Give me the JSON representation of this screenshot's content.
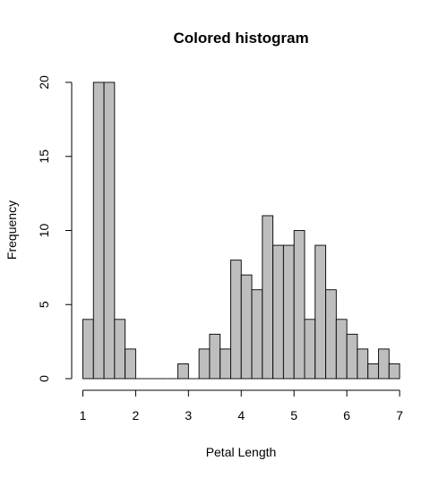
{
  "chart_data": {
    "type": "bar",
    "title": "Colored histogram",
    "xlabel": "Petal Length",
    "ylabel": "Frequency",
    "bar_color": "#bebebe",
    "bar_border_color": "#000000",
    "bin_width": 0.2,
    "xlim": [
      1,
      7
    ],
    "ylim": [
      0,
      20
    ],
    "x_ticks": [
      1,
      2,
      3,
      4,
      5,
      6,
      7
    ],
    "y_ticks": [
      0,
      5,
      10,
      15,
      20
    ],
    "bins": [
      {
        "start": 1.0,
        "end": 1.2,
        "count": 4
      },
      {
        "start": 1.2,
        "end": 1.4,
        "count": 20
      },
      {
        "start": 1.4,
        "end": 1.6,
        "count": 20
      },
      {
        "start": 1.6,
        "end": 1.8,
        "count": 4
      },
      {
        "start": 1.8,
        "end": 2.0,
        "count": 2
      },
      {
        "start": 2.0,
        "end": 2.2,
        "count": 0
      },
      {
        "start": 2.2,
        "end": 2.4,
        "count": 0
      },
      {
        "start": 2.4,
        "end": 2.6,
        "count": 0
      },
      {
        "start": 2.6,
        "end": 2.8,
        "count": 0
      },
      {
        "start": 2.8,
        "end": 3.0,
        "count": 1
      },
      {
        "start": 3.0,
        "end": 3.2,
        "count": 0
      },
      {
        "start": 3.2,
        "end": 3.4,
        "count": 2
      },
      {
        "start": 3.4,
        "end": 3.6,
        "count": 3
      },
      {
        "start": 3.6,
        "end": 3.8,
        "count": 2
      },
      {
        "start": 3.8,
        "end": 4.0,
        "count": 8
      },
      {
        "start": 4.0,
        "end": 4.2,
        "count": 7
      },
      {
        "start": 4.2,
        "end": 4.4,
        "count": 6
      },
      {
        "start": 4.4,
        "end": 4.6,
        "count": 11
      },
      {
        "start": 4.6,
        "end": 4.8,
        "count": 9
      },
      {
        "start": 4.8,
        "end": 5.0,
        "count": 9
      },
      {
        "start": 5.0,
        "end": 5.2,
        "count": 10
      },
      {
        "start": 5.2,
        "end": 5.4,
        "count": 4
      },
      {
        "start": 5.4,
        "end": 5.6,
        "count": 9
      },
      {
        "start": 5.6,
        "end": 5.8,
        "count": 6
      },
      {
        "start": 5.8,
        "end": 6.0,
        "count": 4
      },
      {
        "start": 6.0,
        "end": 6.2,
        "count": 3
      },
      {
        "start": 6.2,
        "end": 6.4,
        "count": 2
      },
      {
        "start": 6.4,
        "end": 6.6,
        "count": 1
      },
      {
        "start": 6.6,
        "end": 6.8,
        "count": 2
      },
      {
        "start": 6.8,
        "end": 7.0,
        "count": 1
      }
    ],
    "grid": false
  }
}
